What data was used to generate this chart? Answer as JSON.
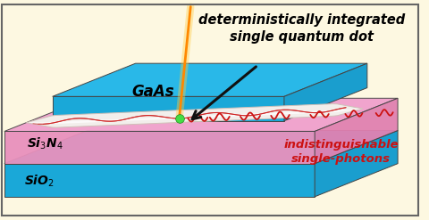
{
  "bg_color": "#fdf8e1",
  "border_color": "#666666",
  "sio2_top_color": "#29b8e8",
  "sio2_side_color": "#1a9ece",
  "sio2_front_color": "#1aa8d8",
  "si3n4_top_color": "#f0a0cc",
  "si3n4_side_color": "#e080b0",
  "si3n4_front_color": "#e890bc",
  "gaas_top_color": "#29b8e8",
  "gaas_side_color": "#1a9ece",
  "gaas_front_color": "#1aa8d8",
  "wg_color": "#f2eeeb",
  "wg_edge_color": "#d0c0b8",
  "laser_color": "#ff8800",
  "laser_glow": "#ffcc44",
  "qdot_color": "#44dd44",
  "photon_color": "#cc1111",
  "arrow_color": "#111111",
  "label_title": "deterministically integrated\nsingle quantum dot",
  "label_gaas": "GaAs",
  "label_si3n4": "Si$_3$N$_4$",
  "label_sio2": "SiO$_2$",
  "label_photons": "indistinguishable\nsingle-photons",
  "fig_width": 4.8,
  "fig_height": 2.47,
  "dpi": 100
}
